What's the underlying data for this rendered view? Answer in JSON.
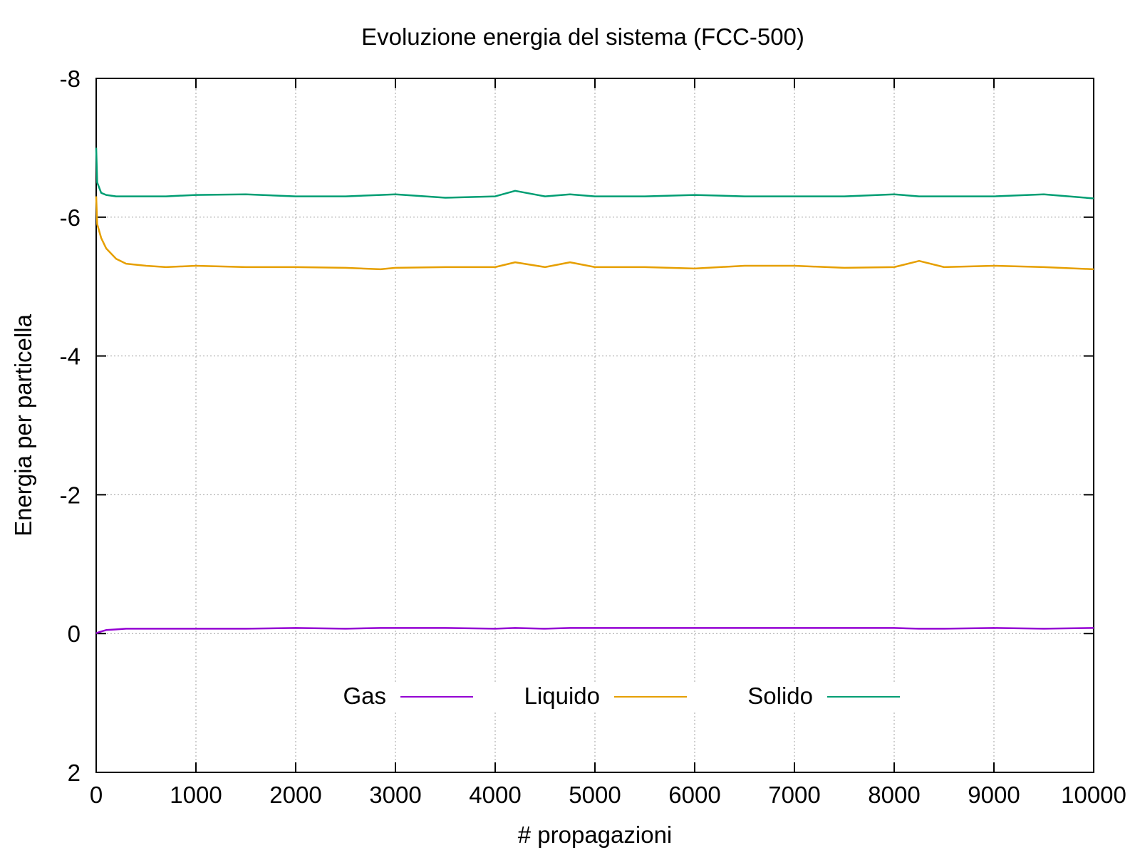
{
  "chart_data": {
    "type": "line",
    "title": "Evoluzione energia del sistema (FCC-500)",
    "xlabel": "# propagazioni",
    "ylabel": "Energia per particella",
    "xlim": [
      0,
      10000
    ],
    "ylim": [
      2,
      -8
    ],
    "y_axis_inverted": true,
    "grid": true,
    "legend_position": "bottom-center, inside plot, horizontal",
    "x_ticks": [
      0,
      1000,
      2000,
      3000,
      4000,
      5000,
      6000,
      7000,
      8000,
      9000,
      10000
    ],
    "x_tick_labels": [
      "0",
      "1000",
      "2000",
      "3000",
      "4000",
      "5000",
      "6000",
      "7000",
      "8000",
      "9000",
      "10000"
    ],
    "y_ticks": [
      -8,
      -6,
      -4,
      -2,
      0,
      2
    ],
    "y_tick_labels": [
      "-8",
      "-6",
      "-4",
      "-2",
      "0",
      "2"
    ],
    "x": [
      0,
      10,
      50,
      100,
      200,
      300,
      500,
      700,
      1000,
      1500,
      2000,
      2500,
      2850,
      3000,
      3500,
      4000,
      4200,
      4500,
      4750,
      5000,
      5500,
      6000,
      6500,
      7000,
      7500,
      8000,
      8250,
      8500,
      9000,
      9500,
      10000
    ],
    "series": [
      {
        "name": "Gas",
        "color": "#9400d3",
        "values": [
          0.0,
          -0.01,
          -0.03,
          -0.05,
          -0.06,
          -0.07,
          -0.07,
          -0.07,
          -0.07,
          -0.07,
          -0.08,
          -0.07,
          -0.08,
          -0.08,
          -0.08,
          -0.07,
          -0.08,
          -0.07,
          -0.08,
          -0.08,
          -0.08,
          -0.08,
          -0.08,
          -0.08,
          -0.08,
          -0.08,
          -0.07,
          -0.07,
          -0.08,
          -0.07,
          -0.08
        ]
      },
      {
        "name": "Liquido",
        "color": "#e69f00",
        "values": [
          -6.3,
          -5.9,
          -5.7,
          -5.55,
          -5.4,
          -5.33,
          -5.3,
          -5.28,
          -5.3,
          -5.28,
          -5.28,
          -5.27,
          -5.25,
          -5.27,
          -5.28,
          -5.28,
          -5.35,
          -5.28,
          -5.35,
          -5.28,
          -5.28,
          -5.26,
          -5.3,
          -5.3,
          -5.27,
          -5.28,
          -5.37,
          -5.28,
          -5.3,
          -5.28,
          -5.25
        ]
      },
      {
        "name": "Solido",
        "color": "#009e73",
        "values": [
          -7.0,
          -6.5,
          -6.35,
          -6.32,
          -6.3,
          -6.3,
          -6.3,
          -6.3,
          -6.32,
          -6.33,
          -6.3,
          -6.3,
          -6.32,
          -6.33,
          -6.28,
          -6.3,
          -6.38,
          -6.3,
          -6.33,
          -6.3,
          -6.3,
          -6.32,
          -6.3,
          -6.3,
          -6.3,
          -6.33,
          -6.3,
          -6.3,
          -6.3,
          -6.33,
          -6.27
        ]
      }
    ]
  }
}
